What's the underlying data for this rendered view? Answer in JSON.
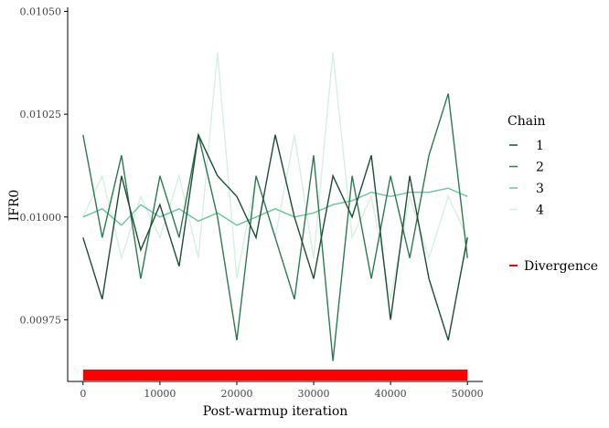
{
  "chart_data": {
    "type": "line",
    "title": "",
    "xlabel": "Post-warmup iteration",
    "ylabel": "IFR0",
    "xlim": [
      -2000,
      52000
    ],
    "ylim": [
      0.0096,
      0.01051
    ],
    "x_ticks": [
      0,
      10000,
      20000,
      30000,
      40000,
      50000
    ],
    "x_tick_labels": [
      "0",
      "10000",
      "20000",
      "30000",
      "40000",
      "50000"
    ],
    "y_ticks": [
      0.00975,
      0.01,
      0.01025,
      0.0105
    ],
    "y_tick_labels": [
      "0.00975",
      "0.01000",
      "0.01025",
      "0.01050"
    ],
    "grid": false,
    "legend": {
      "title": "Chain",
      "placement": "right",
      "entries": [
        {
          "label": "1",
          "color": "#1b4d35"
        },
        {
          "label": "2",
          "color": "#2b7a52"
        },
        {
          "label": "3",
          "color": "#6cc39a"
        },
        {
          "label": "4",
          "color": "#d6efe3"
        }
      ],
      "divergence_label": "Divergence",
      "divergence_color": "#ff0000"
    },
    "series": [
      {
        "name": "1",
        "color": "#1b4d35",
        "x": [
          0,
          2500,
          5000,
          7500,
          10000,
          12500,
          15000,
          17500,
          20000,
          22500,
          25000,
          27500,
          30000,
          32500,
          35000,
          37500,
          40000,
          42500,
          45000,
          47500,
          50000
        ],
        "y": [
          0.00995,
          0.0098,
          0.0101,
          0.00992,
          0.01003,
          0.00988,
          0.0102,
          0.0101,
          0.01005,
          0.00995,
          0.0102,
          0.01,
          0.00985,
          0.0101,
          0.01,
          0.01015,
          0.00975,
          0.0101,
          0.00985,
          0.0097,
          0.00995
        ]
      },
      {
        "name": "2",
        "color": "#2b7a52",
        "x": [
          0,
          2500,
          5000,
          7500,
          10000,
          12500,
          15000,
          17500,
          20000,
          22500,
          25000,
          27500,
          30000,
          32500,
          35000,
          37500,
          40000,
          42500,
          45000,
          47500,
          50000
        ],
        "y": [
          0.0102,
          0.00995,
          0.01015,
          0.00985,
          0.0101,
          0.00995,
          0.0102,
          0.01,
          0.0097,
          0.0101,
          0.00995,
          0.0098,
          0.01015,
          0.00965,
          0.0101,
          0.00985,
          0.0101,
          0.0099,
          0.01015,
          0.0103,
          0.0099
        ]
      },
      {
        "name": "3",
        "color": "#6cc39a",
        "x": [
          0,
          2500,
          5000,
          7500,
          10000,
          12500,
          15000,
          17500,
          20000,
          22500,
          25000,
          27500,
          30000,
          32500,
          35000,
          37500,
          40000,
          42500,
          45000,
          47500,
          50000
        ],
        "y": [
          0.01,
          0.01002,
          0.00998,
          0.01003,
          0.01,
          0.01002,
          0.00999,
          0.01001,
          0.00998,
          0.01,
          0.01002,
          0.01,
          0.01001,
          0.01003,
          0.01004,
          0.01006,
          0.01005,
          0.01006,
          0.01006,
          0.01007,
          0.01005
        ]
      },
      {
        "name": "4",
        "color": "#d6efe3",
        "x": [
          0,
          2500,
          5000,
          7500,
          10000,
          12500,
          15000,
          17500,
          20000,
          22500,
          25000,
          27500,
          30000,
          32500,
          35000,
          37500,
          40000,
          42500,
          45000,
          47500,
          50000
        ],
        "y": [
          0.01,
          0.0101,
          0.0099,
          0.01005,
          0.00995,
          0.0101,
          0.0099,
          0.0104,
          0.00985,
          0.0101,
          0.00995,
          0.0102,
          0.0099,
          0.0104,
          0.00995,
          0.01005,
          0.0098,
          0.01005,
          0.0099,
          0.01005,
          0.00995
        ]
      }
    ],
    "divergence_range": [
      0,
      50000
    ]
  }
}
